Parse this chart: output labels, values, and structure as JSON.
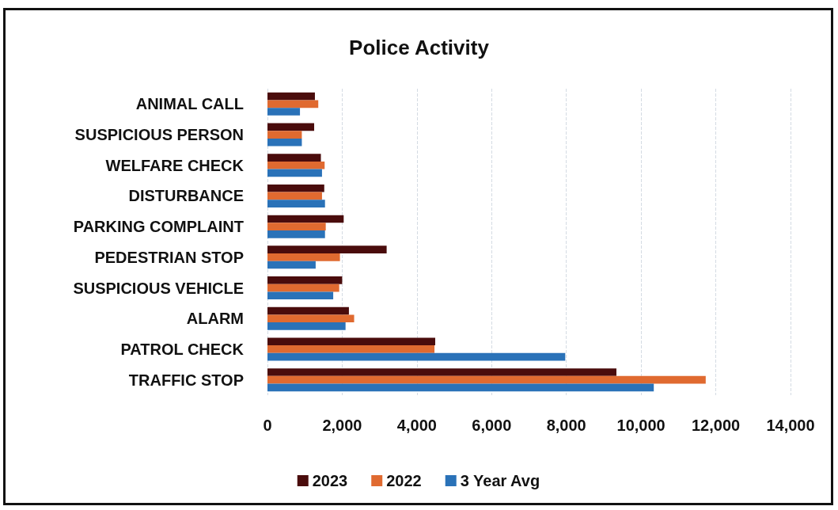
{
  "chart_data": {
    "type": "bar",
    "orientation": "horizontal",
    "title": "Police Activity",
    "categories": [
      "ANIMAL CALL",
      "SUSPICIOUS PERSON",
      "WELFARE CHECK",
      "DISTURBANCE",
      "PARKING COMPLAINT",
      "PEDESTRIAN STOP",
      "SUSPICIOUS VEHICLE",
      "ALARM",
      "PATROL CHECK",
      "TRAFFIC STOP"
    ],
    "series": [
      {
        "name": "2023",
        "color": "#4a0c0c",
        "values": [
          1270,
          1250,
          1430,
          1520,
          2040,
          3190,
          2000,
          2180,
          4490,
          9340
        ]
      },
      {
        "name": "2022",
        "color": "#e06a30",
        "values": [
          1360,
          920,
          1530,
          1460,
          1560,
          1940,
          1920,
          2320,
          4470,
          11730
        ]
      },
      {
        "name": "3 Year Avg",
        "color": "#2a72b8",
        "values": [
          870,
          920,
          1460,
          1540,
          1540,
          1290,
          1760,
          2090,
          7970,
          10340
        ]
      }
    ],
    "xlim": [
      0,
      14000
    ],
    "xticks": [
      {
        "value": 0,
        "label": "0"
      },
      {
        "value": 2000,
        "label": "2,000"
      },
      {
        "value": 4000,
        "label": "4,000"
      },
      {
        "value": 6000,
        "label": "6,000"
      },
      {
        "value": 8000,
        "label": "8,000"
      },
      {
        "value": 10000,
        "label": "10,000"
      },
      {
        "value": 12000,
        "label": "12,000"
      },
      {
        "value": 14000,
        "label": "14,000"
      }
    ],
    "grid": "x",
    "legend": "bottom"
  }
}
